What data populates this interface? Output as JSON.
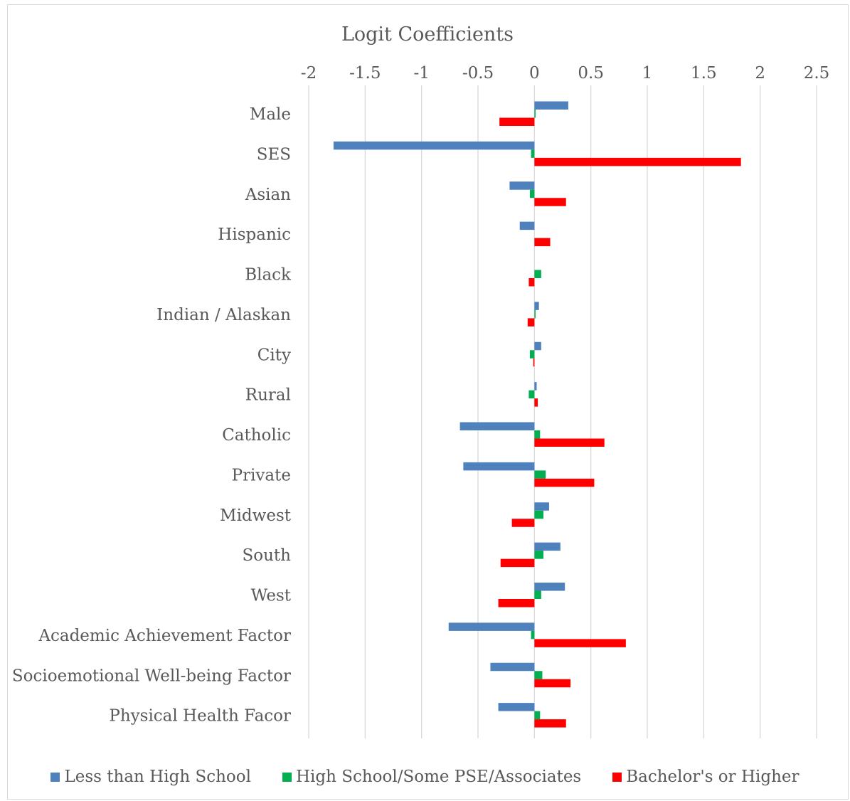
{
  "chart_data": {
    "type": "bar",
    "orientation": "horizontal",
    "title": "Logit Coefficients",
    "xlim": [
      -2,
      2.5
    ],
    "x_ticks": [
      -2,
      -1.5,
      -1,
      -0.5,
      0,
      0.5,
      1,
      1.5,
      2,
      2.5
    ],
    "x_tick_labels": [
      "-2",
      "-1.5",
      "-1",
      "-0.5",
      "0",
      "0.5",
      "1",
      "1.5",
      "2",
      "2.5"
    ],
    "axis_position": "top",
    "grid": true,
    "legend_position": "bottom",
    "categories": [
      "Male",
      "SES",
      "Asian",
      "Hispanic",
      "Black",
      "Indian / Alaskan",
      "City",
      "Rural",
      "Catholic",
      "Private",
      "Midwest",
      "South",
      "West",
      "Academic Achievement Factor",
      "Socioemotional Well-being Factor",
      "Physical Health Facor"
    ],
    "series": [
      {
        "name": "Less than High School",
        "color": "#4f81bd",
        "values": [
          0.3,
          -1.78,
          -0.22,
          -0.13,
          0.0,
          0.04,
          0.06,
          0.02,
          -0.66,
          -0.63,
          0.13,
          0.23,
          0.27,
          -0.76,
          -0.39,
          -0.32
        ]
      },
      {
        "name": "High School/Some PSE/Associates",
        "color": "#00b050",
        "values": [
          0.01,
          -0.03,
          -0.04,
          0.0,
          0.06,
          0.01,
          -0.04,
          -0.05,
          0.05,
          0.1,
          0.08,
          0.08,
          0.06,
          -0.03,
          0.07,
          0.05
        ]
      },
      {
        "name": "Bachelor's or Higher",
        "color": "#ff0000",
        "values": [
          -0.31,
          1.83,
          0.28,
          0.14,
          -0.05,
          -0.06,
          -0.01,
          0.03,
          0.62,
          0.53,
          -0.2,
          -0.3,
          -0.32,
          0.81,
          0.32,
          0.28
        ]
      }
    ]
  }
}
